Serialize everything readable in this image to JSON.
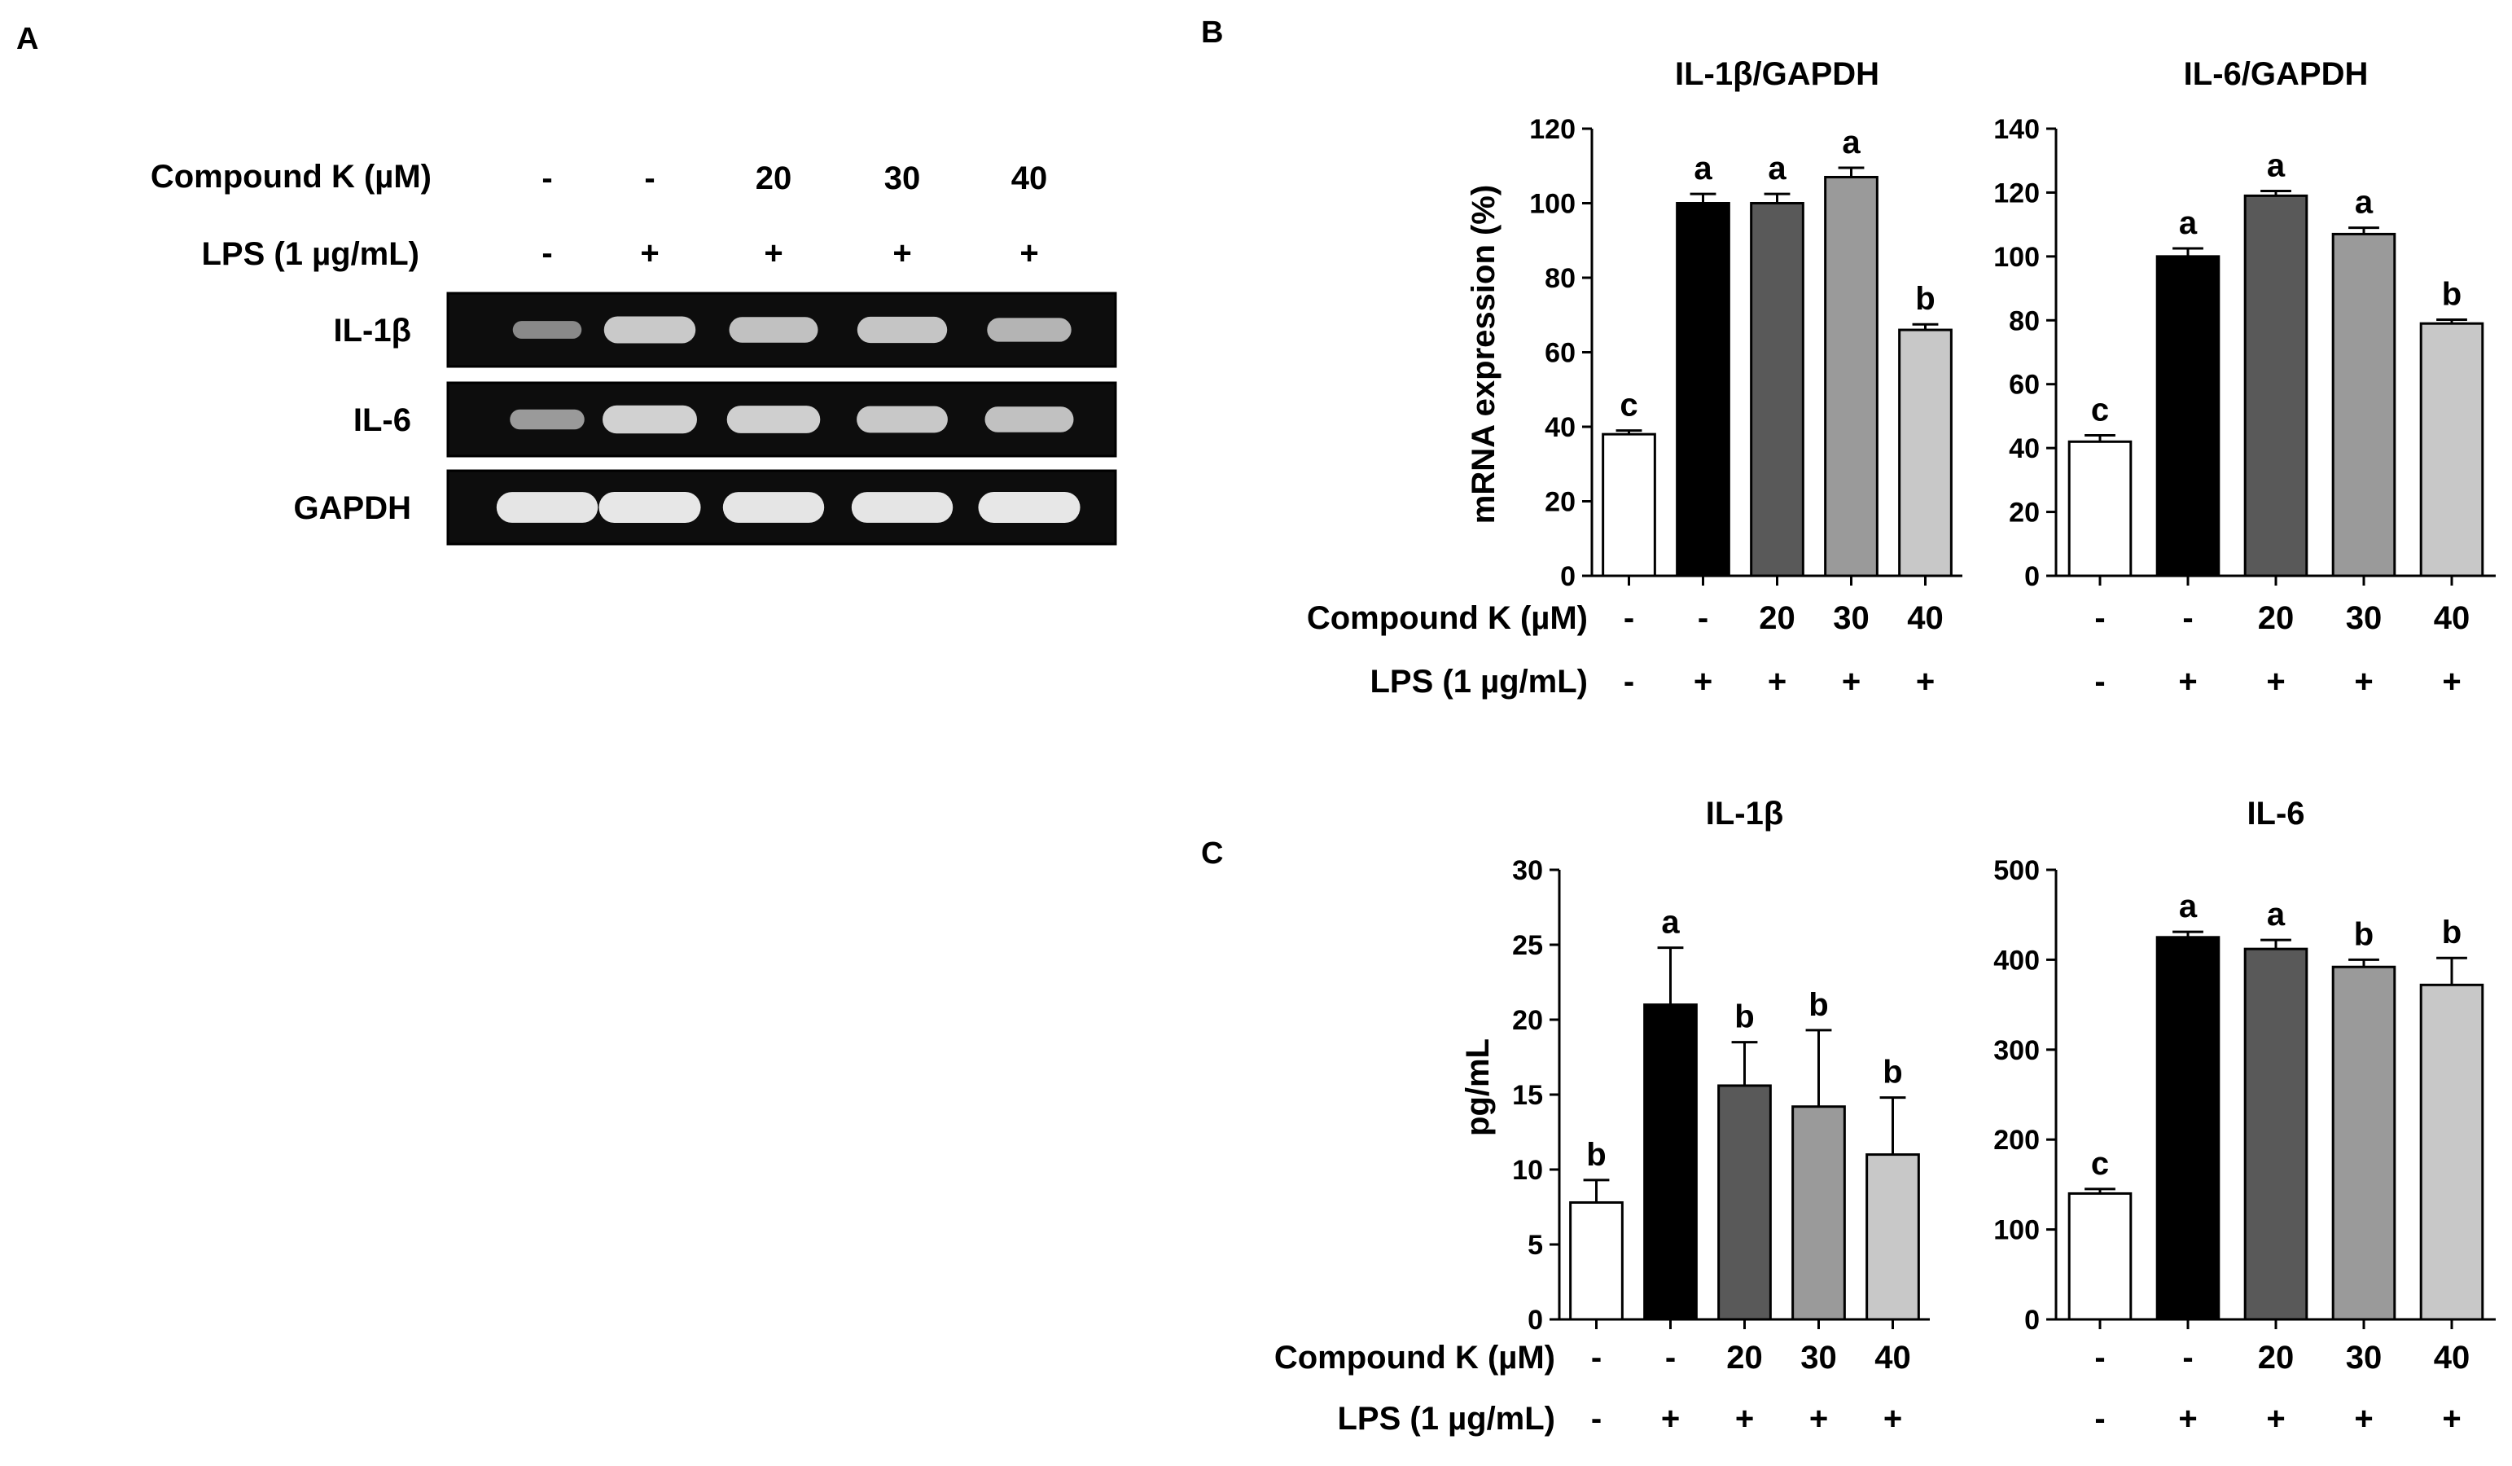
{
  "panels": {
    "A": {
      "letter": "A",
      "conditions": {
        "compound_label": "Compound K (µM)",
        "compound_values": [
          "-",
          "-",
          "20",
          "30",
          "40"
        ],
        "lps_label": "LPS (1 µg/mL)",
        "lps_values": [
          "-",
          "+",
          "+",
          "+",
          "+"
        ]
      },
      "gel_rows": [
        {
          "label": "IL-1β",
          "band_intensity": [
            0.35,
            0.75,
            0.7,
            0.72,
            0.62
          ]
        },
        {
          "label": "IL-6",
          "band_intensity": [
            0.45,
            0.8,
            0.78,
            0.74,
            0.7
          ]
        },
        {
          "label": "GAPDH",
          "band_intensity": [
            0.92,
            0.93,
            0.92,
            0.92,
            0.93
          ]
        }
      ]
    },
    "B": {
      "letter": "B"
    },
    "C": {
      "letter": "C"
    }
  },
  "colors": {
    "bars": [
      "#ffffff",
      "#000000",
      "#595959",
      "#9a9a9a",
      "#c8c8c8"
    ],
    "gel_background": "#0d0d0d",
    "gel_band": "#f2f2f2"
  },
  "chart_data": [
    {
      "id": "B1",
      "panel": "B",
      "type": "bar",
      "title": "IL-1β/GAPDH",
      "ylabel": "mRNA expression (%)",
      "ylim": [
        0,
        120
      ],
      "yticks": [
        0,
        20,
        40,
        60,
        80,
        100,
        120
      ],
      "categories": [
        "-/-",
        "-/+",
        "20/+",
        "30/+",
        "40/+"
      ],
      "compound_label": "Compound K (µM)",
      "compound_values": [
        "-",
        "-",
        "20",
        "30",
        "40"
      ],
      "lps_label": "LPS (1 µg/mL)",
      "lps_values": [
        "-",
        "+",
        "+",
        "+",
        "+"
      ],
      "values": [
        38,
        100,
        100,
        107,
        66
      ],
      "errors": [
        1,
        2.5,
        2.5,
        2.5,
        1.5
      ],
      "significance": [
        "c",
        "a",
        "a",
        "a",
        "b"
      ]
    },
    {
      "id": "B2",
      "panel": "B",
      "type": "bar",
      "title": "IL-6/GAPDH",
      "ylabel": "",
      "ylim": [
        0,
        140
      ],
      "yticks": [
        0,
        20,
        40,
        60,
        80,
        100,
        120,
        140
      ],
      "categories": [
        "-/-",
        "-/+",
        "20/+",
        "30/+",
        "40/+"
      ],
      "compound_label": "",
      "compound_values": [
        "-",
        "-",
        "20",
        "30",
        "40"
      ],
      "lps_label": "",
      "lps_values": [
        "-",
        "+",
        "+",
        "+",
        "+"
      ],
      "values": [
        42,
        100,
        119,
        107,
        79
      ],
      "errors": [
        2,
        2.5,
        1.5,
        2,
        1.2
      ],
      "significance": [
        "c",
        "a",
        "a",
        "a",
        "b"
      ]
    },
    {
      "id": "C1",
      "panel": "C",
      "type": "bar",
      "title": "IL-1β",
      "ylabel": "pg/mL",
      "ylim": [
        0,
        30
      ],
      "yticks": [
        0,
        5,
        10,
        15,
        20,
        25,
        30
      ],
      "categories": [
        "-/-",
        "-/+",
        "20/+",
        "30/+",
        "40/+"
      ],
      "compound_label": "Compound K (µM)",
      "compound_values": [
        "-",
        "-",
        "20",
        "30",
        "40"
      ],
      "lps_label": "LPS (1 µg/mL)",
      "lps_values": [
        "-",
        "+",
        "+",
        "+",
        "+"
      ],
      "values": [
        7.8,
        21,
        15.6,
        14.2,
        11
      ],
      "errors": [
        1.5,
        3.8,
        2.9,
        5.1,
        3.8
      ],
      "significance": [
        "b",
        "a",
        "b",
        "b",
        "b"
      ]
    },
    {
      "id": "C2",
      "panel": "C",
      "type": "bar",
      "title": "IL-6",
      "ylabel": "",
      "ylim": [
        0,
        500
      ],
      "yticks": [
        0,
        100,
        200,
        300,
        400,
        500
      ],
      "categories": [
        "-/-",
        "-/+",
        "20/+",
        "30/+",
        "40/+"
      ],
      "compound_label": "",
      "compound_values": [
        "-",
        "-",
        "20",
        "30",
        "40"
      ],
      "lps_label": "",
      "lps_values": [
        "-",
        "+",
        "+",
        "+",
        "+"
      ],
      "values": [
        140,
        425,
        412,
        392,
        372
      ],
      "errors": [
        5,
        6,
        10,
        8,
        30
      ],
      "significance": [
        "c",
        "a",
        "a",
        "b",
        "b"
      ]
    }
  ]
}
